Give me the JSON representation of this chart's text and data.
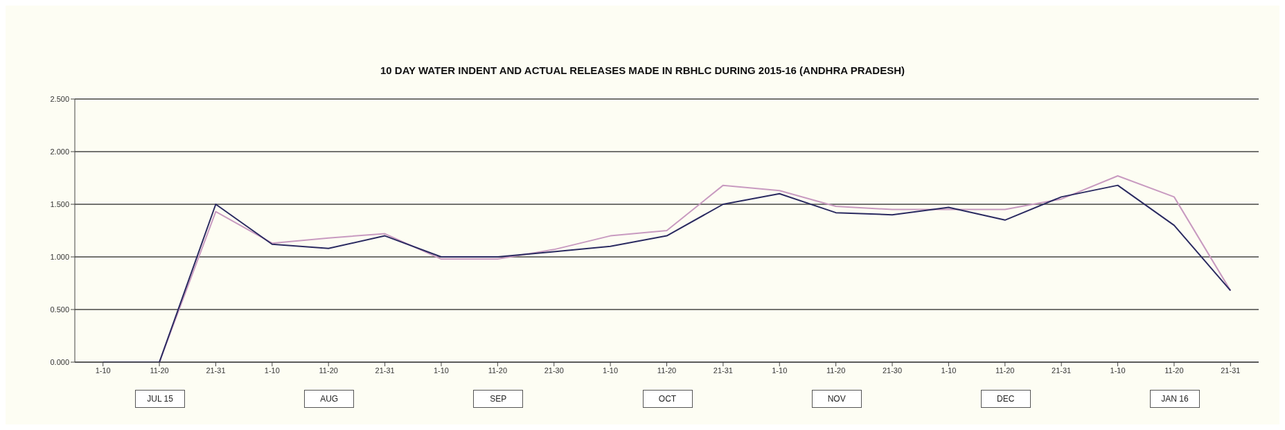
{
  "chart_data": {
    "type": "line",
    "title": "10 DAY WATER INDENT AND ACTUAL RELEASES MADE IN RBHLC DURING 2015-16 (ANDHRA PRADESH)",
    "categories": [
      "1-10",
      "11-20",
      "21-31",
      "1-10",
      "11-20",
      "21-31",
      "1-10",
      "11-20",
      "21-30",
      "1-10",
      "11-20",
      "21-31",
      "1-10",
      "11-20",
      "21-30",
      "1-10",
      "11-20",
      "21-31",
      "1-10",
      "11-20",
      "21-31"
    ],
    "series": [
      {
        "color": "#c89ac0",
        "values": [
          0,
          0,
          1.43,
          1.13,
          1.18,
          1.22,
          0.98,
          0.98,
          1.07,
          1.2,
          1.25,
          1.68,
          1.63,
          1.48,
          1.45,
          1.45,
          1.45,
          1.55,
          1.77,
          1.57,
          0.68
        ]
      },
      {
        "color": "#2a2a60",
        "values": [
          0,
          0,
          1.5,
          1.12,
          1.08,
          1.2,
          1.0,
          1.0,
          1.05,
          1.1,
          1.2,
          1.5,
          1.6,
          1.42,
          1.4,
          1.47,
          1.35,
          1.57,
          1.68,
          1.3,
          0.68
        ]
      }
    ],
    "ylim": [
      0,
      2.5
    ],
    "yticks": [
      {
        "value": 0,
        "label": "0.000"
      },
      {
        "value": 0.5,
        "label": "0.500"
      },
      {
        "value": 1,
        "label": "1.000"
      },
      {
        "value": 1.5,
        "label": "1.500"
      },
      {
        "value": 2,
        "label": "2.000"
      },
      {
        "value": 2.5,
        "label": "2.500"
      }
    ],
    "grid": "y",
    "legend": false,
    "marker": "none",
    "line_style": "solid",
    "annotations": [
      "JUL 15",
      "AUG",
      "SEP",
      "OCT",
      "NOV",
      "DEC",
      "JAN 16"
    ]
  }
}
